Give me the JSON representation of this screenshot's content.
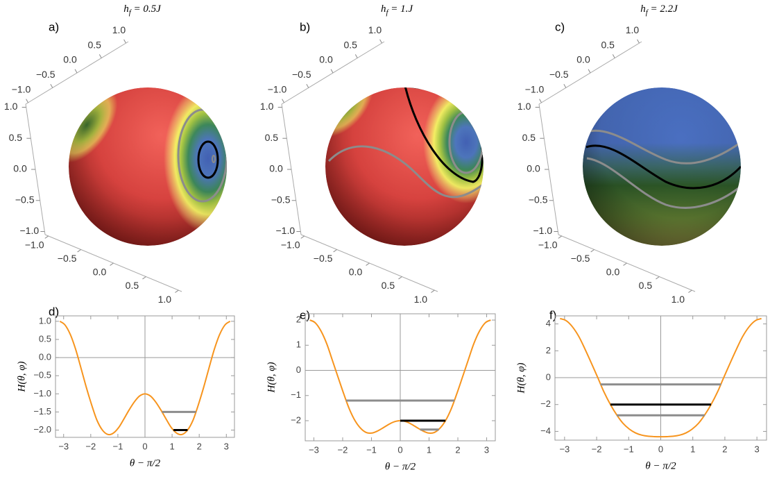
{
  "chart_data": [
    {
      "type": "sphere",
      "label": "a)",
      "title": {
        "main": "h",
        "sub": "f",
        "rest": " = 0.5J"
      },
      "xlim": [
        -1.05,
        1.05
      ],
      "xticks": [
        {
          "value": -1,
          "label": "−1.0"
        },
        {
          "value": -0.5,
          "label": "−0.5"
        },
        {
          "value": 0,
          "label": "0.0"
        },
        {
          "value": 0.5,
          "label": "0.5"
        },
        {
          "value": 1,
          "label": "1.0"
        }
      ],
      "ylim": [
        -1.05,
        1.05
      ],
      "yticks": [
        {
          "value": -1,
          "label": "−1.0"
        },
        {
          "value": -0.5,
          "label": "−0.5"
        },
        {
          "value": 0,
          "label": "0.0"
        },
        {
          "value": 0.5,
          "label": "0.5"
        },
        {
          "value": 1,
          "label": "1.0"
        }
      ],
      "zlim": [
        -1.05,
        1.05
      ],
      "zticks": [
        {
          "value": -1,
          "label": "−1.0"
        },
        {
          "value": -0.5,
          "label": "−0.5"
        },
        {
          "value": 0,
          "label": "0.0"
        },
        {
          "value": 0.5,
          "label": "0.5"
        },
        {
          "value": 1,
          "label": "1.0"
        }
      ]
    },
    {
      "type": "sphere",
      "label": "b)",
      "title": {
        "main": "h",
        "sub": "f",
        "rest": " = 1.J"
      },
      "xlim": [
        -1.05,
        1.05
      ],
      "xticks": [
        {
          "value": -1,
          "label": "−1.0"
        },
        {
          "value": -0.5,
          "label": "−0.5"
        },
        {
          "value": 0,
          "label": "0.0"
        },
        {
          "value": 0.5,
          "label": "0.5"
        },
        {
          "value": 1,
          "label": "1.0"
        }
      ],
      "ylim": [
        -1.05,
        1.05
      ],
      "yticks": [
        {
          "value": -1,
          "label": "−1.0"
        },
        {
          "value": -0.5,
          "label": "−0.5"
        },
        {
          "value": 0,
          "label": "0.0"
        },
        {
          "value": 0.5,
          "label": "0.5"
        },
        {
          "value": 1,
          "label": "1.0"
        }
      ],
      "zlim": [
        -1.05,
        1.05
      ],
      "zticks": [
        {
          "value": -1,
          "label": "−1.0"
        },
        {
          "value": -0.5,
          "label": "−0.5"
        },
        {
          "value": 0,
          "label": "0.0"
        },
        {
          "value": 0.5,
          "label": "0.5"
        },
        {
          "value": 1,
          "label": "1.0"
        }
      ]
    },
    {
      "type": "sphere",
      "label": "c)",
      "title": {
        "main": "h",
        "sub": "f",
        "rest": " = 2.2J"
      },
      "xlim": [
        -1.05,
        1.05
      ],
      "xticks": [
        {
          "value": -1,
          "label": "−1.0"
        },
        {
          "value": -0.5,
          "label": "−0.5"
        },
        {
          "value": 0,
          "label": "0.0"
        },
        {
          "value": 0.5,
          "label": "0.5"
        },
        {
          "value": 1,
          "label": "1.0"
        }
      ],
      "ylim": [
        -1.05,
        1.05
      ],
      "yticks": [
        {
          "value": -1,
          "label": "−1.0"
        },
        {
          "value": -0.5,
          "label": "−0.5"
        },
        {
          "value": 0,
          "label": "0.0"
        },
        {
          "value": 0.5,
          "label": "0.5"
        },
        {
          "value": 1,
          "label": "1.0"
        }
      ],
      "zlim": [
        -1.05,
        1.05
      ],
      "zticks": [
        {
          "value": -1,
          "label": "−1.0"
        },
        {
          "value": -0.5,
          "label": "−0.5"
        },
        {
          "value": 0,
          "label": "0.0"
        },
        {
          "value": 0.5,
          "label": "0.5"
        },
        {
          "value": 1,
          "label": "1.0"
        }
      ]
    },
    {
      "type": "line",
      "label": "d)",
      "xlabel": "θ − π/2",
      "ylabel": "H(θ, φ)",
      "x": [
        -3.14,
        -2.95,
        -2.75,
        -2.55,
        -2.36,
        -2.16,
        -1.96,
        -1.77,
        -1.57,
        -1.37,
        -1.18,
        -0.98,
        -0.79,
        -0.59,
        -0.39,
        -0.2,
        0,
        0.2,
        0.39,
        0.59,
        0.79,
        0.98,
        1.18,
        1.37,
        1.57,
        1.77,
        1.96,
        2.16,
        2.36,
        2.55,
        2.75,
        2.95,
        3.14
      ],
      "series": [
        {
          "color": "#f7941d",
          "values": [
            1,
            0.9,
            0.63,
            0.21,
            -0.29,
            -0.83,
            -1.32,
            -1.73,
            -2,
            -2.12,
            -2.09,
            -1.94,
            -1.71,
            -1.45,
            -1.22,
            -1.06,
            -1,
            -1.06,
            -1.22,
            -1.45,
            -1.71,
            -1.94,
            -2.09,
            -2.12,
            -2,
            -1.73,
            -1.32,
            -0.83,
            -0.29,
            0.21,
            0.63,
            0.9,
            1
          ]
        },
        {
          "color": "#8c8c8c",
          "x": [
            0.63,
            1.88
          ],
          "values": [
            -1.5,
            -1.5
          ]
        },
        {
          "color": "#000000",
          "x": [
            1.05,
            1.57
          ],
          "values": [
            -2,
            -2
          ]
        }
      ],
      "xlim": [
        -3.3,
        3.3
      ],
      "xticks": [
        {
          "value": -3,
          "label": "−3"
        },
        {
          "value": -2,
          "label": "−2"
        },
        {
          "value": -1,
          "label": "−1"
        },
        0,
        1,
        2,
        3
      ],
      "ylim": [
        -2.2,
        1.15
      ],
      "yticks": [
        {
          "value": 1,
          "label": "1.0"
        },
        {
          "value": 0.5,
          "label": "0.5"
        },
        {
          "value": 0,
          "label": "0.0"
        },
        {
          "value": -0.5,
          "label": "−0.5"
        },
        {
          "value": -1,
          "label": "−1.0"
        },
        {
          "value": -1.5,
          "label": "−1.5"
        },
        {
          "value": -2,
          "label": "−2.0"
        }
      ]
    },
    {
      "type": "line",
      "label": "e)",
      "xlabel": "θ − π/2",
      "ylabel": "H(θ, φ)",
      "x": [
        -3.14,
        -2.95,
        -2.75,
        -2.55,
        -2.36,
        -2.16,
        -1.96,
        -1.77,
        -1.57,
        -1.37,
        -1.18,
        -0.98,
        -0.79,
        -0.59,
        -0.39,
        -0.2,
        0,
        0.2,
        0.39,
        0.59,
        0.79,
        0.98,
        1.18,
        1.37,
        1.57,
        1.77,
        1.96,
        2.16,
        2.36,
        2.55,
        2.75,
        2.95,
        3.14
      ],
      "series": [
        {
          "color": "#f7941d",
          "values": [
            2,
            1.89,
            1.56,
            1.05,
            0.41,
            -0.27,
            -0.94,
            -1.53,
            -2,
            -2.31,
            -2.47,
            -2.49,
            -2.41,
            -2.28,
            -2.14,
            -2.04,
            -2,
            -2.04,
            -2.14,
            -2.28,
            -2.41,
            -2.49,
            -2.47,
            -2.31,
            -2,
            -1.53,
            -0.94,
            -0.27,
            0.41,
            1.05,
            1.56,
            1.89,
            2
          ]
        },
        {
          "color": "#8c8c8c",
          "x": [
            -1.88,
            1.88
          ],
          "values": [
            -1.2,
            -1.2
          ]
        },
        {
          "color": "#000000",
          "x": [
            0,
            1.57
          ],
          "values": [
            -2,
            -2
          ]
        },
        {
          "color": "#8c8c8c",
          "x": [
            0.69,
            1.34
          ],
          "values": [
            -2.35,
            -2.35
          ]
        }
      ],
      "xlim": [
        -3.3,
        3.3
      ],
      "xticks": [
        {
          "value": -3,
          "label": "−3"
        },
        {
          "value": -2,
          "label": "−2"
        },
        {
          "value": -1,
          "label": "−1"
        },
        0,
        1,
        2,
        3
      ],
      "ylim": [
        -2.8,
        2.25
      ],
      "yticks": [
        2,
        1,
        0,
        {
          "value": -1,
          "label": "−1"
        },
        {
          "value": -2,
          "label": "−2"
        }
      ]
    },
    {
      "type": "line",
      "label": "f)",
      "xlabel": "θ − π/2",
      "ylabel": "H(θ, φ)",
      "x": [
        -3.14,
        -2.95,
        -2.75,
        -2.55,
        -2.36,
        -2.16,
        -1.96,
        -1.77,
        -1.57,
        -1.37,
        -1.18,
        -0.98,
        -0.79,
        -0.59,
        -0.39,
        -0.2,
        0,
        0.2,
        0.39,
        0.59,
        0.79,
        0.98,
        1.18,
        1.37,
        1.57,
        1.77,
        1.96,
        2.16,
        2.36,
        2.55,
        2.75,
        2.95,
        3.14
      ],
      "series": [
        {
          "color": "#f7941d",
          "values": [
            4.4,
            4.24,
            3.77,
            3.04,
            2.11,
            1.06,
            -0.02,
            -1.07,
            -2,
            -2.78,
            -3.39,
            -3.83,
            -4.11,
            -4.28,
            -4.36,
            -4.39,
            -4.4,
            -4.39,
            -4.36,
            -4.28,
            -4.11,
            -3.83,
            -3.39,
            -2.78,
            -2,
            -1.07,
            -0.02,
            1.06,
            2.11,
            3.04,
            3.77,
            4.24,
            4.4
          ]
        },
        {
          "color": "#8c8c8c",
          "x": [
            -1.88,
            1.88
          ],
          "values": [
            -0.5,
            -0.5
          ]
        },
        {
          "color": "#000000",
          "x": [
            -1.57,
            1.57
          ],
          "values": [
            -2,
            -2
          ]
        },
        {
          "color": "#8c8c8c",
          "x": [
            -1.37,
            1.37
          ],
          "values": [
            -2.8,
            -2.8
          ]
        }
      ],
      "xlim": [
        -3.3,
        3.3
      ],
      "xticks": [
        {
          "value": -3,
          "label": "−3"
        },
        {
          "value": -2,
          "label": "−2"
        },
        {
          "value": -1,
          "label": "−1"
        },
        0,
        1,
        2,
        3
      ],
      "ylim": [
        -4.65,
        4.6
      ],
      "yticks": [
        4,
        2,
        0,
        {
          "value": -2,
          "label": "−2"
        },
        {
          "value": -4,
          "label": "−4"
        }
      ]
    }
  ]
}
